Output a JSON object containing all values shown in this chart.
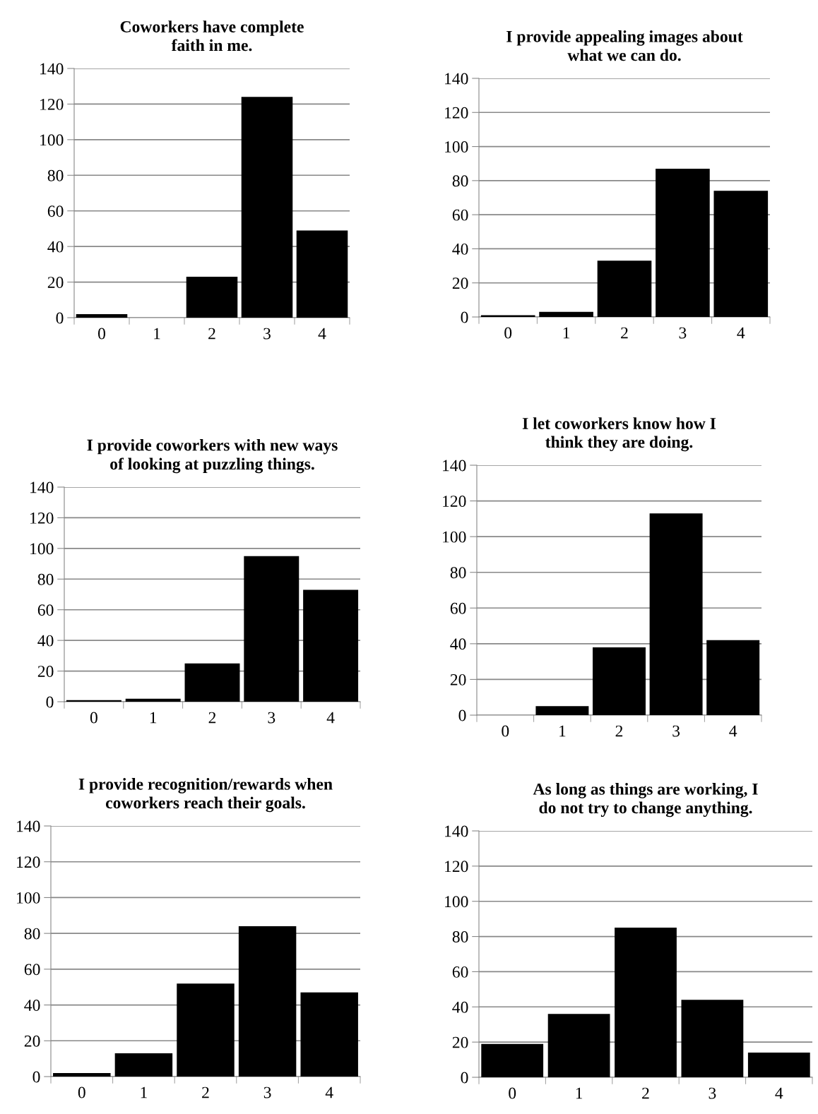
{
  "chart_data": [
    {
      "type": "bar",
      "title": "Coworkers have complete faith in me.",
      "categories": [
        "0",
        "1",
        "2",
        "3",
        "4"
      ],
      "values": [
        2,
        0,
        23,
        124,
        49
      ],
      "color": "#000000",
      "ylim": [
        0,
        140
      ],
      "yticks": [
        0,
        20,
        40,
        60,
        80,
        100,
        120,
        140
      ],
      "grid": "y"
    },
    {
      "type": "bar",
      "title": "I provide appealing images about what we can do.",
      "categories": [
        "0",
        "1",
        "2",
        "3",
        "4"
      ],
      "values": [
        1,
        3,
        33,
        87,
        74
      ],
      "color": "#000000",
      "ylim": [
        0,
        140
      ],
      "yticks": [
        0,
        20,
        40,
        60,
        80,
        100,
        120,
        140
      ],
      "grid": "y"
    },
    {
      "type": "bar",
      "title": "I provide coworkers with new ways of looking at puzzling things.",
      "categories": [
        "0",
        "1",
        "2",
        "3",
        "4"
      ],
      "values": [
        1,
        2,
        25,
        95,
        73
      ],
      "color": "#000000",
      "ylim": [
        0,
        140
      ],
      "yticks": [
        0,
        20,
        40,
        60,
        80,
        100,
        120,
        140
      ],
      "grid": "y"
    },
    {
      "type": "bar",
      "title": "I let coworkers know how I think they are doing.",
      "categories": [
        "0",
        "1",
        "2",
        "3",
        "4"
      ],
      "values": [
        0,
        5,
        38,
        113,
        42
      ],
      "color": "#000000",
      "ylim": [
        0,
        140
      ],
      "yticks": [
        0,
        20,
        40,
        60,
        80,
        100,
        120,
        140
      ],
      "grid": "y"
    },
    {
      "type": "bar",
      "title": "I provide recognition/rewards when coworkers reach their goals.",
      "categories": [
        "0",
        "1",
        "2",
        "3",
        "4"
      ],
      "values": [
        2,
        13,
        52,
        84,
        47
      ],
      "color": "#000000",
      "ylim": [
        0,
        140
      ],
      "yticks": [
        0,
        20,
        40,
        60,
        80,
        100,
        120,
        140
      ],
      "grid": "y"
    },
    {
      "type": "bar",
      "title": "As long as things are working, I do not try to change anything.",
      "categories": [
        "0",
        "1",
        "2",
        "3",
        "4"
      ],
      "values": [
        19,
        36,
        85,
        44,
        14
      ],
      "color": "#000000",
      "ylim": [
        0,
        140
      ],
      "yticks": [
        0,
        20,
        40,
        60,
        80,
        100,
        120,
        140
      ],
      "grid": "y"
    }
  ]
}
